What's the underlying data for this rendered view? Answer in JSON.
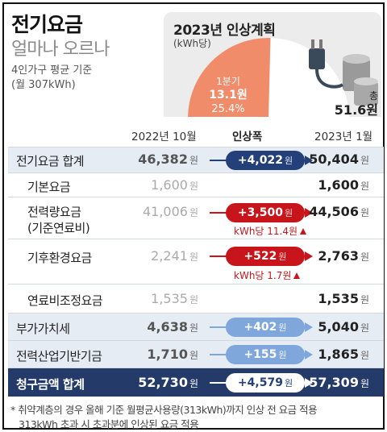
{
  "header": {
    "title": "전기요금",
    "subtitle": "얼마나 오르나",
    "basis_line1": "4인가구 평균 기준",
    "basis_line2": "(월 307kWh)"
  },
  "plan_panel": {
    "title": "2023년 인상계획",
    "unit": "(kWh당)",
    "q1_label": "1분기",
    "q1_value": "13.1원",
    "q1_pct": "25.4%",
    "total_label": "총",
    "total_value": "51.6원",
    "q1_share": 0.254,
    "colors": {
      "q1": "#f08c6a",
      "rest": "#ffffff"
    }
  },
  "columns": {
    "before": "2022년 10월",
    "increase": "인상폭",
    "after": "2023년 1월"
  },
  "currency": "원",
  "rows": [
    {
      "label": "전기요금 합계",
      "before": "46,382",
      "inc": "+4,022",
      "after": "50,404"
    },
    {
      "label": "기본요금",
      "before": "1,600",
      "after": "1,600"
    },
    {
      "label": "전력량요금",
      "label2": "(기준연료비)",
      "before": "41,006",
      "inc": "+3,500",
      "after": "44,506",
      "note": "kWh당 11.4원"
    },
    {
      "label": "기후환경요금",
      "before": "2,241",
      "inc": "+522",
      "after": "2,763",
      "note": "kWh당 1.7원"
    },
    {
      "label": "연료비조정요금",
      "before": "1,535",
      "after": "1,535"
    },
    {
      "label": "부가가치세",
      "before": "4,638",
      "inc": "+402",
      "after": "5,040"
    },
    {
      "label": "전력산업기반기금",
      "before": "1,710",
      "inc": "+155",
      "after": "1,865"
    },
    {
      "label": "청구금액 합계",
      "before": "52,730",
      "inc": "+4,579",
      "after": "57,309"
    }
  ],
  "footnote": {
    "line1": "* 취약계층의 경우 올해 기준 월평균사용량(313kWh)까지 인상 전 요금 적용",
    "line2": "313kWh 초과 시 초과분에 인상된 요금 적용"
  }
}
